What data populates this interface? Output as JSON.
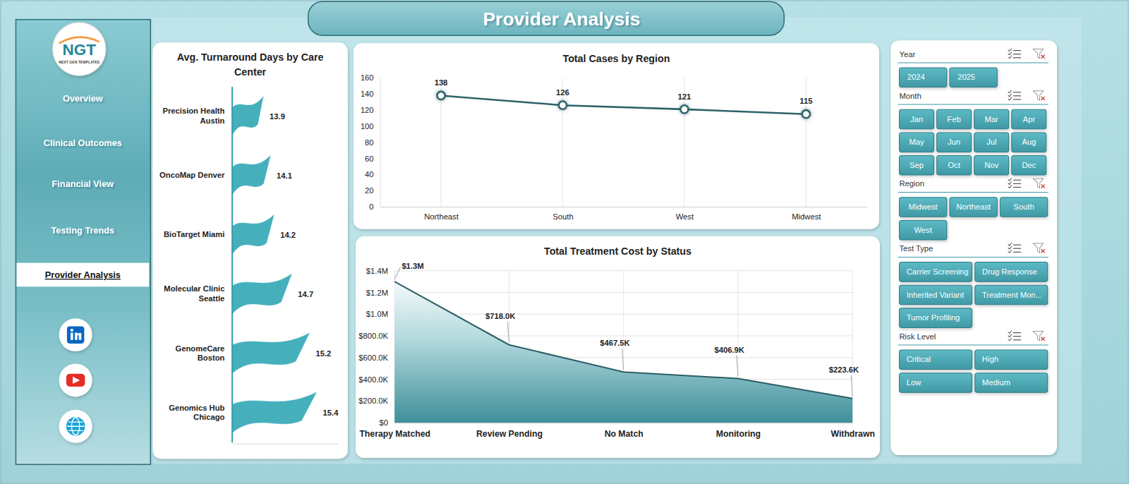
{
  "page": {
    "title": "Provider Analysis",
    "logo": "NGT",
    "logo_caption": "NEXT GEN TEMPLATES",
    "nav": [
      "Overview",
      "Clinical Outcomes",
      "Financial View",
      "Testing Trends",
      "Provider Analysis"
    ],
    "selected": "Provider Analysis",
    "slicers": [
      {
        "title": "Year",
        "options": [
          "2024",
          "2025"
        ]
      },
      {
        "title": "Month",
        "options": [
          "Jan",
          "Feb",
          "Mar",
          "Apr",
          "May",
          "Jun",
          "Jul",
          "Aug",
          "Sep",
          "Oct",
          "Nov",
          "Dec"
        ]
      },
      {
        "title": "Region",
        "options": [
          "Midwest",
          "Northeast",
          "South",
          "West"
        ]
      },
      {
        "title": "Test Type",
        "options": [
          "Carrier Screening",
          "Drug Response",
          "Inherited Variant",
          "Treatment Mon...",
          "Tumor Profiling"
        ]
      },
      {
        "title": "Risk Level",
        "options": [
          "Critical",
          "High",
          "Low",
          "Medium"
        ]
      }
    ]
  },
  "chart_data": [
    {
      "type": "bar",
      "title": "Avg. Turnaround Days by Care Center",
      "orientation": "horizontal",
      "categories": [
        "Precision Health Austin",
        "OncoMap Denver",
        "BioTarget Miami",
        "Molecular Clinic Seattle",
        "GenomeCare Boston",
        "Genomics Hub Chicago"
      ],
      "values": [
        13.9,
        14.1,
        14.2,
        14.7,
        15.2,
        15.4
      ],
      "color": "#45b0bc",
      "xlim": [
        13,
        16
      ],
      "tick_labels": "y",
      "data_labels": true
    },
    {
      "type": "line",
      "title": "Total Cases by Region",
      "categories": [
        "Northeast",
        "South",
        "West",
        "Midwest"
      ],
      "values": [
        138,
        126,
        121,
        115
      ],
      "color": "#2d6369",
      "marker": "circle",
      "ylim": [
        0,
        160
      ],
      "yticks": [
        0,
        20,
        40,
        60,
        80,
        100,
        120,
        140,
        160
      ],
      "grid": "x",
      "data_labels": true
    },
    {
      "type": "area",
      "title": "Total Treatment Cost by Status",
      "categories": [
        "Therapy Matched",
        "Review Pending",
        "No Match",
        "Monitoring",
        "Withdrawn"
      ],
      "values": [
        1300000,
        718000,
        467500,
        406900,
        223600
      ],
      "value_labels": [
        "$1.3M",
        "$718.0K",
        "$467.5K",
        "$406.9K",
        "$223.6K"
      ],
      "color": "#3e8f99",
      "ylim": [
        0,
        1400000
      ],
      "yticks": [
        {
          "value": 0,
          "label": "$0"
        },
        {
          "value": 200000,
          "label": "$200.0K"
        },
        {
          "value": 400000,
          "label": "$400.0K"
        },
        {
          "value": 600000,
          "label": "$600.0K"
        },
        {
          "value": 800000,
          "label": "$800.0K"
        },
        {
          "value": 1000000,
          "label": "$1.0M"
        },
        {
          "value": 1200000,
          "label": "$1.2M"
        },
        {
          "value": 1400000,
          "label": "$1.4M"
        }
      ],
      "grid": true,
      "data_labels": true
    }
  ]
}
